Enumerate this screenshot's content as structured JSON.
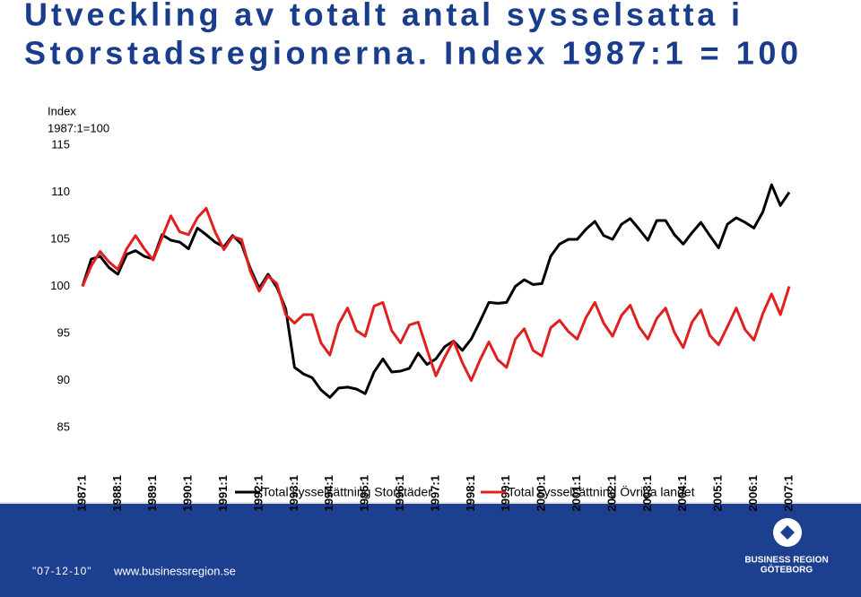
{
  "chart_data": {
    "type": "line",
    "title": "Utveckling av totalt antal sysselsatta i Storstadsregionerna. Index 1987:1 = 100",
    "title_lines": [
      "Utveckling av totalt antal sysselsatta i",
      "Storstadsregionerna. Index 1987:1 = 100"
    ],
    "y_label_lines": [
      "Index",
      "1987:1=100"
    ],
    "categories": [
      "1987:1",
      null,
      null,
      null,
      "1988:1",
      null,
      null,
      null,
      "1989:1",
      null,
      null,
      null,
      "1990:1",
      null,
      null,
      null,
      "1991:1",
      null,
      null,
      null,
      "1992:1",
      null,
      null,
      null,
      "1993:1",
      null,
      null,
      null,
      "1994:1",
      null,
      null,
      null,
      "1995:1",
      null,
      null,
      null,
      "1996:1",
      null,
      null,
      null,
      "1997:1",
      null,
      null,
      null,
      "1998:1",
      null,
      null,
      null,
      "1999:1",
      null,
      null,
      null,
      "2000:1",
      null,
      null,
      null,
      "2001:1",
      null,
      null,
      null,
      "2002:1",
      null,
      null,
      null,
      "2003:1",
      null,
      null,
      null,
      "2004:1",
      null,
      null,
      null,
      "2005:1",
      null,
      null,
      null,
      "2006:1",
      null,
      null,
      null,
      "2007:1"
    ],
    "series": [
      {
        "name": "Total sysselsättning Storstäder",
        "color": "#000000",
        "values": [
          100,
          102.9,
          103.2,
          102.0,
          101.3,
          103.4,
          103.8,
          103.2,
          102.9,
          105.5,
          104.9,
          104.7,
          104.0,
          106.2,
          105.5,
          104.7,
          104.2,
          105.4,
          104.5,
          101.9,
          99.8,
          101.3,
          99.9,
          97.6,
          91.4,
          90.7,
          90.3,
          89.0,
          88.2,
          89.2,
          89.3,
          89.1,
          88.6,
          90.9,
          92.3,
          90.9,
          91.0,
          91.3,
          92.9,
          91.7,
          92.3,
          93.6,
          94.2,
          93.2,
          94.4,
          96.3,
          98.3,
          98.2,
          98.3,
          100.0,
          100.7,
          100.2,
          100.3,
          103.2,
          104.5,
          105.0,
          105.0,
          106.1,
          106.9,
          105.4,
          105.0,
          106.6,
          107.2,
          106.1,
          104.9,
          107.0,
          107.0,
          105.5,
          104.5,
          105.7,
          106.8,
          105.4,
          104.1,
          106.6,
          107.3,
          106.8,
          106.2,
          107.9,
          110.8,
          108.6,
          110.0
        ]
      },
      {
        "name": "Total sysselsättning Övriga landet",
        "color": "#e0201f",
        "values": [
          100,
          102.2,
          103.7,
          102.6,
          101.8,
          104.0,
          105.4,
          104.0,
          102.8,
          105.2,
          107.5,
          105.8,
          105.5,
          107.3,
          108.3,
          105.8,
          103.9,
          105.3,
          105.0,
          101.6,
          99.5,
          101.1,
          100.3,
          97.0,
          96.1,
          97.0,
          97.0,
          94.0,
          92.7,
          96.0,
          97.7,
          95.3,
          94.7,
          97.9,
          98.3,
          95.3,
          94.0,
          95.9,
          96.2,
          93.3,
          90.5,
          92.5,
          94.2,
          91.9,
          90.0,
          92.2,
          94.1,
          92.2,
          91.4,
          94.4,
          95.5,
          93.2,
          92.6,
          95.6,
          96.4,
          95.2,
          94.4,
          96.7,
          98.3,
          96.1,
          94.7,
          96.9,
          98.0,
          95.7,
          94.4,
          96.6,
          97.7,
          95.1,
          93.5,
          96.2,
          97.5,
          94.8,
          93.8,
          95.7,
          97.7,
          95.4,
          94.3,
          97.1,
          99.2,
          97.0,
          100.0
        ]
      }
    ],
    "ylim": [
      85,
      115
    ],
    "yticks": [
      85,
      90,
      95,
      100,
      105,
      110,
      115
    ],
    "grid": false,
    "legend": "bottom"
  },
  "footer": {
    "date": "\"07-12-10\"",
    "website": "www.businessregion.se",
    "logo_lines": [
      "BUSINESS REGION",
      "GÖTEBORG"
    ]
  }
}
